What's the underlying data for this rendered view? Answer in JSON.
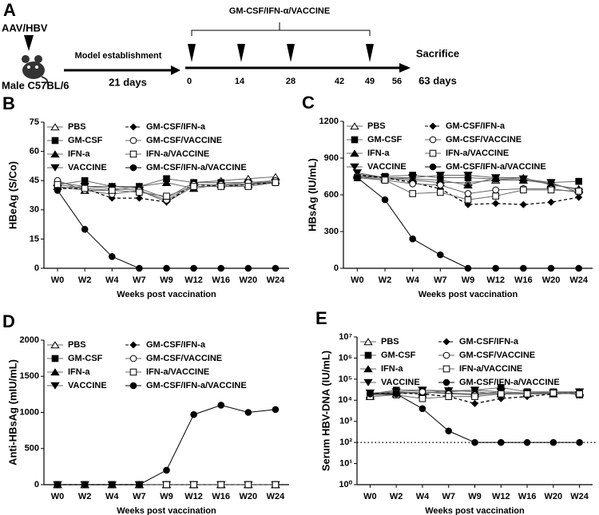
{
  "panel_a": {
    "label": "A",
    "injection": "AAV/HBV",
    "mouse": "Male C57BL/6",
    "phase_1": "Model establishment",
    "phase_1_duration": "21 days",
    "treatment": "GM-CSF/IFN-α/VACCINE",
    "end": "Sacrifice",
    "timeline": [
      "0",
      "14",
      "28",
      "42",
      "49",
      "56",
      "63 days"
    ]
  },
  "chart_data": [
    {
      "type": "line",
      "panel": "B",
      "y_label": "HBeAg (S/Co)",
      "x_label": "Weeks post vaccination",
      "categories": [
        "W0",
        "W2",
        "W4",
        "W7",
        "W9",
        "W12",
        "W16",
        "W20",
        "W24"
      ],
      "ylim": [
        0,
        75
      ],
      "yticks": [
        0,
        15,
        30,
        45,
        60,
        75
      ],
      "series": [
        {
          "name": "PBS",
          "color": "#666",
          "marker": "triangle-open",
          "line_style": "solid",
          "values": [
            44,
            42,
            42,
            41,
            36,
            44,
            45,
            46,
            47
          ]
        },
        {
          "name": "GM-CSF",
          "color": "#666",
          "marker": "square",
          "line_style": "solid",
          "values": [
            43,
            45,
            42,
            42,
            46,
            44,
            44,
            44,
            44
          ]
        },
        {
          "name": "IFN-a",
          "color": "#666",
          "marker": "triangle",
          "line_style": "solid",
          "values": [
            42,
            40,
            40,
            42,
            44,
            41,
            43,
            43,
            45
          ]
        },
        {
          "name": "VACCINE",
          "color": "#666",
          "marker": "triangle-down",
          "line_style": "solid",
          "values": [
            41,
            42,
            41,
            40,
            34,
            42,
            42,
            43,
            44
          ]
        },
        {
          "name": "GM-CSF/IFN-a",
          "color": "#000",
          "marker": "diamond",
          "line_style": "dashed",
          "values": [
            41,
            41,
            36,
            36,
            34,
            43,
            42,
            43,
            44
          ]
        },
        {
          "name": "GM-CSF/VACCINE",
          "color": "#666",
          "marker": "circle-open",
          "line_style": "solid",
          "values": [
            45,
            40,
            38,
            40,
            35,
            43,
            43,
            44,
            45
          ]
        },
        {
          "name": "IFN-a/VACCINE",
          "color": "#666",
          "marker": "square-open",
          "line_style": "solid",
          "values": [
            43,
            41,
            40,
            39,
            37,
            42,
            42,
            42,
            44
          ]
        },
        {
          "name": "GM-CSF/IFN-a/VACCINE",
          "color": "#000",
          "marker": "circle",
          "line_style": "solid",
          "values": [
            40,
            20,
            6,
            0,
            0,
            0,
            0,
            0,
            0
          ]
        }
      ]
    },
    {
      "type": "line",
      "panel": "C",
      "y_label": "HBsAg (IU/mL)",
      "x_label": "Weeks post vaccination",
      "categories": [
        "W0",
        "W2",
        "W4",
        "W7",
        "W9",
        "W12",
        "W16",
        "W20",
        "W24"
      ],
      "ylim": [
        0,
        1200
      ],
      "yticks": [
        0,
        300,
        600,
        900,
        1200
      ],
      "series": [
        {
          "name": "PBS",
          "color": "#666",
          "marker": "triangle-open",
          "line_style": "solid",
          "values": [
            760,
            730,
            720,
            700,
            700,
            720,
            720,
            690,
            640
          ]
        },
        {
          "name": "GM-CSF",
          "color": "#666",
          "marker": "square",
          "line_style": "solid",
          "values": [
            740,
            750,
            760,
            740,
            740,
            730,
            720,
            700,
            710
          ]
        },
        {
          "name": "IFN-a",
          "color": "#666",
          "marker": "triangle",
          "line_style": "solid",
          "values": [
            770,
            740,
            730,
            720,
            680,
            740,
            740,
            680,
            650
          ]
        },
        {
          "name": "VACCINE",
          "color": "#666",
          "marker": "triangle-down",
          "line_style": "solid",
          "values": [
            780,
            740,
            740,
            760,
            760,
            740,
            730,
            700,
            620
          ]
        },
        {
          "name": "GM-CSF/IFN-a",
          "color": "#000",
          "marker": "diamond",
          "line_style": "dashed",
          "values": [
            760,
            740,
            700,
            650,
            520,
            530,
            520,
            540,
            580
          ]
        },
        {
          "name": "GM-CSF/VACCINE",
          "color": "#666",
          "marker": "circle-open",
          "line_style": "solid",
          "values": [
            750,
            720,
            690,
            680,
            610,
            640,
            650,
            650,
            620
          ]
        },
        {
          "name": "IFN-a/VACCINE",
          "color": "#666",
          "marker": "square-open",
          "line_style": "solid",
          "values": [
            740,
            720,
            610,
            620,
            560,
            590,
            640,
            640,
            630
          ]
        },
        {
          "name": "GM-CSF/IFN-a/VACCINE",
          "color": "#000",
          "marker": "circle",
          "line_style": "solid",
          "values": [
            740,
            560,
            240,
            110,
            0,
            0,
            0,
            0,
            0
          ]
        }
      ]
    },
    {
      "type": "line",
      "panel": "D",
      "y_label": "Anti-HBsAg (mIU/mL)",
      "x_label": "Weeks post vaccination",
      "categories": [
        "W0",
        "W2",
        "W4",
        "W7",
        "W9",
        "W12",
        "W16",
        "W20",
        "W24"
      ],
      "ylim": [
        0,
        2000
      ],
      "yticks": [
        0,
        500,
        1000,
        1500,
        2000
      ],
      "series": [
        {
          "name": "PBS",
          "color": "#666",
          "marker": "triangle-open",
          "line_style": "solid",
          "values": [
            0,
            0,
            0,
            0,
            0,
            0,
            0,
            0,
            0
          ]
        },
        {
          "name": "GM-CSF",
          "color": "#666",
          "marker": "square",
          "line_style": "solid",
          "values": [
            0,
            0,
            0,
            0,
            0,
            0,
            0,
            0,
            0
          ]
        },
        {
          "name": "IFN-a",
          "color": "#666",
          "marker": "triangle",
          "line_style": "solid",
          "values": [
            0,
            0,
            0,
            0,
            0,
            0,
            0,
            0,
            0
          ]
        },
        {
          "name": "VACCINE",
          "color": "#666",
          "marker": "triangle-down",
          "line_style": "solid",
          "values": [
            0,
            0,
            0,
            0,
            0,
            0,
            0,
            0,
            0
          ]
        },
        {
          "name": "GM-CSF/IFN-a",
          "color": "#000",
          "marker": "diamond",
          "line_style": "dashed",
          "values": [
            0,
            0,
            0,
            0,
            0,
            0,
            0,
            0,
            0
          ]
        },
        {
          "name": "GM-CSF/VACCINE",
          "color": "#666",
          "marker": "circle-open",
          "line_style": "solid",
          "values": [
            0,
            0,
            0,
            0,
            0,
            0,
            0,
            0,
            0
          ]
        },
        {
          "name": "IFN-a/VACCINE",
          "color": "#666",
          "marker": "square-open",
          "line_style": "solid",
          "values": [
            0,
            0,
            0,
            0,
            0,
            0,
            0,
            0,
            0
          ]
        },
        {
          "name": "GM-CSF/IFN-a/VACCINE",
          "color": "#000",
          "marker": "circle",
          "line_style": "solid",
          "values": [
            0,
            0,
            0,
            0,
            200,
            970,
            1100,
            1000,
            1040
          ]
        }
      ]
    },
    {
      "type": "line",
      "panel": "E",
      "y_label": "Serum HBV-DNA (IU/mL)",
      "x_label": "Weeks post vaccination",
      "categories": [
        "W0",
        "W2",
        "W4",
        "W7",
        "W9",
        "W12",
        "W16",
        "W20",
        "W24"
      ],
      "log_scale": true,
      "ylim": [
        1,
        10000000
      ],
      "yticks": [
        {
          "value": 1,
          "label": "10⁰"
        },
        {
          "value": 10,
          "label": "10¹"
        },
        {
          "value": 100,
          "label": "10²"
        },
        {
          "value": 1000,
          "label": "10³"
        },
        {
          "value": 10000,
          "label": "10⁴"
        },
        {
          "value": 100000,
          "label": "10⁵"
        },
        {
          "value": 1000000,
          "label": "10⁶"
        },
        {
          "value": 10000000,
          "label": "10⁷"
        }
      ],
      "hline": 100,
      "series": [
        {
          "name": "PBS",
          "color": "#666",
          "marker": "triangle-open",
          "line_style": "solid",
          "values": [
            15000,
            20000,
            25000,
            22000,
            20000,
            25000,
            22000,
            25000,
            25000
          ]
        },
        {
          "name": "GM-CSF",
          "color": "#666",
          "marker": "square",
          "line_style": "solid",
          "values": [
            20000,
            30000,
            30000,
            25000,
            30000,
            40000,
            25000,
            25000,
            18000
          ]
        },
        {
          "name": "IFN-a",
          "color": "#666",
          "marker": "triangle",
          "line_style": "solid",
          "values": [
            18000,
            25000,
            20000,
            30000,
            25000,
            20000,
            20000,
            20000,
            22000
          ]
        },
        {
          "name": "VACCINE",
          "color": "#666",
          "marker": "triangle-down",
          "line_style": "solid",
          "values": [
            22000,
            25000,
            30000,
            28000,
            30000,
            25000,
            22000,
            22000,
            25000
          ]
        },
        {
          "name": "GM-CSF/IFN-a",
          "color": "#000",
          "marker": "diamond",
          "line_style": "dashed",
          "values": [
            20000,
            22000,
            20000,
            15000,
            7000,
            12000,
            15000,
            20000,
            25000
          ]
        },
        {
          "name": "GM-CSF/VACCINE",
          "color": "#666",
          "marker": "circle-open",
          "line_style": "solid",
          "values": [
            18000,
            22000,
            25000,
            20000,
            18000,
            22000,
            20000,
            25000,
            22000
          ]
        },
        {
          "name": "IFN-a/VACCINE",
          "color": "#666",
          "marker": "square-open",
          "line_style": "solid",
          "values": [
            15000,
            18000,
            12000,
            15000,
            15000,
            20000,
            20000,
            22000,
            20000
          ]
        },
        {
          "name": "GM-CSF/IFN-a/VACCINE",
          "color": "#000",
          "marker": "circle",
          "line_style": "solid",
          "values": [
            20000,
            20000,
            4000,
            350,
            100,
            100,
            100,
            100,
            100
          ]
        }
      ]
    }
  ]
}
